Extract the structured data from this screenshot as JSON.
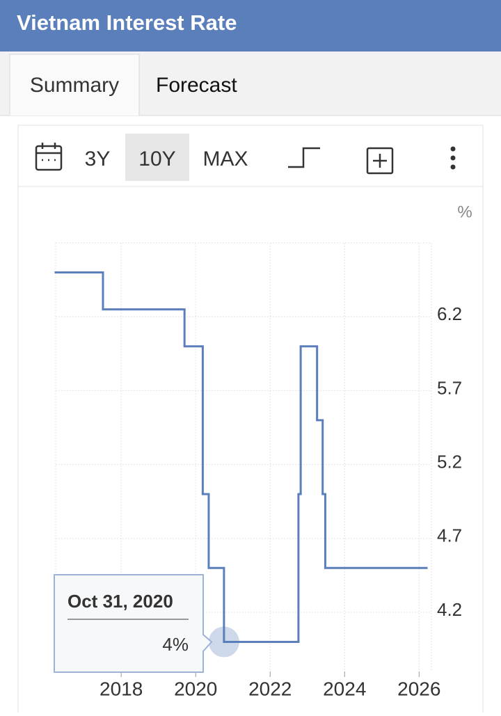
{
  "header": {
    "title": "Vietnam Interest Rate"
  },
  "tabs": [
    "Summary",
    "Forecast"
  ],
  "toolbar": {
    "ranges": [
      "3Y",
      "10Y",
      "MAX"
    ]
  },
  "chart_data": {
    "type": "step",
    "y_unit": "%",
    "x": [
      2016.24,
      2017.51,
      2019.7,
      2020.19,
      2020.35,
      2020.76,
      2022.76,
      2022.82,
      2023.26,
      2023.41,
      2023.48
    ],
    "values": [
      6.5,
      6.25,
      6,
      5,
      4.5,
      4,
      5,
      6,
      5.5,
      5,
      4.5
    ],
    "color": "#5b7fbb",
    "xlim": [
      2016.24,
      2026.2
    ],
    "xticks": [
      2018,
      2020,
      2022,
      2024,
      2026
    ],
    "ylim": [
      3.8,
      6.7
    ],
    "yticks": [
      4.2,
      4.7,
      5.2,
      5.7,
      6.2
    ],
    "grid": true,
    "tooltip": {
      "label": "Oct 31, 2020",
      "value": 4,
      "value_label": "4%"
    }
  }
}
